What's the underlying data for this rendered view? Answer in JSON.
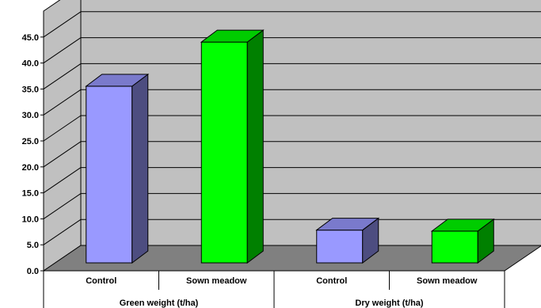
{
  "chart_data": {
    "type": "bar",
    "title": "",
    "xlabel": "",
    "ylabel": "",
    "ylim": [
      0,
      50
    ],
    "y_ticks": [
      "0.0",
      "5.0",
      "10.0",
      "15.0",
      "20.0",
      "25.0",
      "30.0",
      "35.0",
      "40.0",
      "45.0"
    ],
    "grid": true,
    "legend": "none",
    "groups": [
      {
        "label": "Green weight (t/ha)",
        "bars": [
          {
            "category": "Control",
            "value": 36.3,
            "color": "#9999ff"
          },
          {
            "category": "Sown meadow",
            "value": 44.8,
            "color": "#00ff00"
          }
        ]
      },
      {
        "label": "Dry weight (t/ha)",
        "bars": [
          {
            "category": "Control",
            "value": 8.6,
            "color": "#9999ff"
          },
          {
            "category": "Sown meadow",
            "value": 8.4,
            "color": "#00ff00"
          }
        ]
      }
    ]
  }
}
